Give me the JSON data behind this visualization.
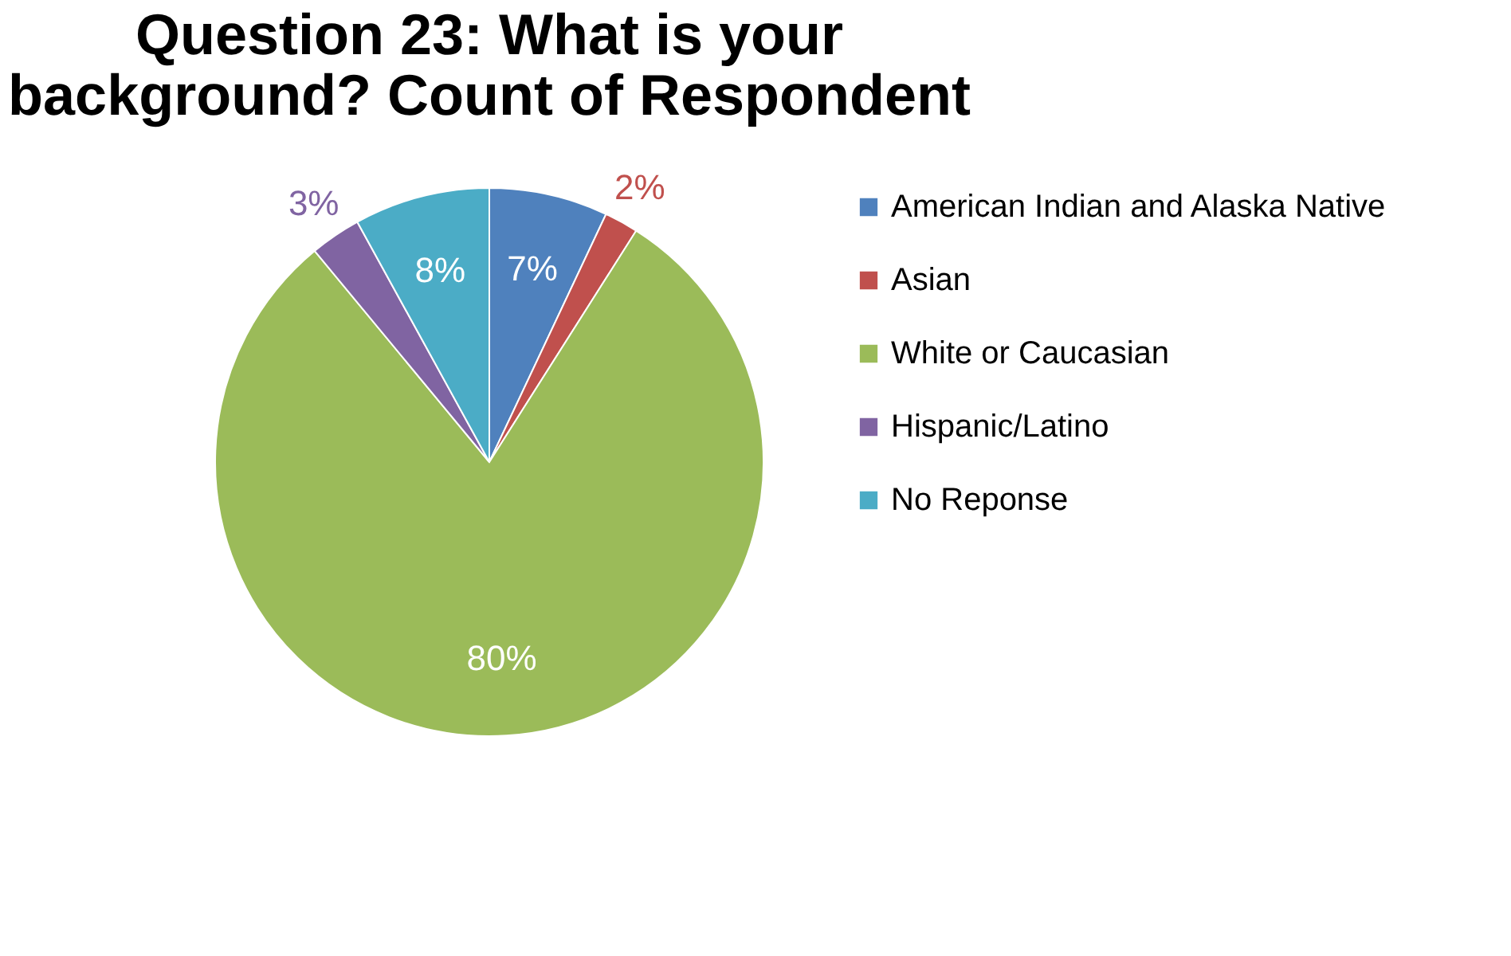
{
  "chart_data": {
    "type": "pie",
    "title": "Question 23: What is your background? Count of Respondent",
    "categories": [
      "American Indian and Alaska Native",
      "Asian",
      "White or Caucasian",
      "Hispanic/Latino",
      "No Reponse"
    ],
    "values": [
      7,
      2,
      80,
      3,
      8
    ],
    "colors": [
      "#4f81bd",
      "#c0504d",
      "#9bbb59",
      "#8064a2",
      "#4bacc6"
    ],
    "value_labels": [
      "7%",
      "2%",
      "80%",
      "3%",
      "8%"
    ],
    "legend": "right"
  }
}
